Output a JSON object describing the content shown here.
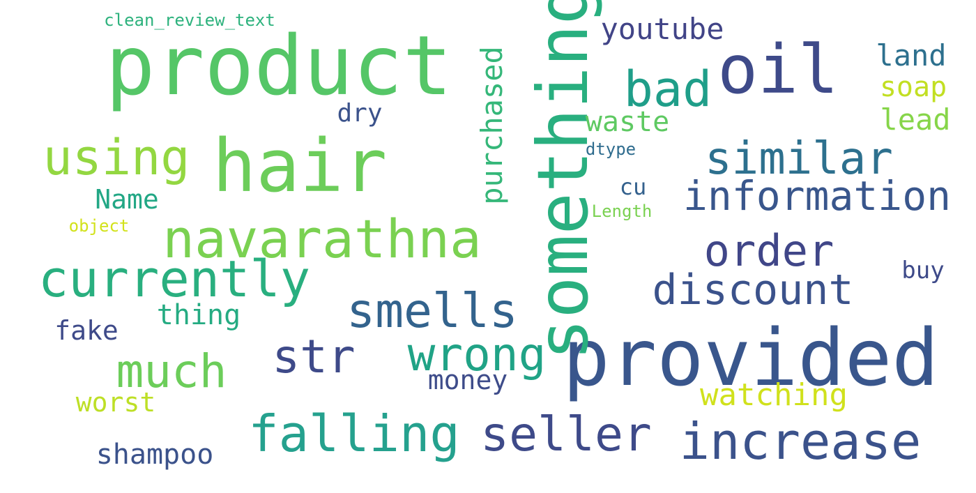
{
  "words": [
    {
      "key": "product",
      "text": "product",
      "color": "#55c667"
    },
    {
      "key": "provided",
      "text": "provided",
      "color": "#39568c"
    },
    {
      "key": "hair",
      "text": "hair",
      "color": "#6ccd5a"
    },
    {
      "key": "something",
      "text": "something",
      "color": "#29af7f"
    },
    {
      "key": "oil",
      "text": "oil",
      "color": "#3e4a89"
    },
    {
      "key": "navarathna",
      "text": "navarathna",
      "color": "#7ad151"
    },
    {
      "key": "falling",
      "text": "falling",
      "color": "#25a18e"
    },
    {
      "key": "increase",
      "text": "increase",
      "color": "#3b528b"
    },
    {
      "key": "currently",
      "text": "currently",
      "color": "#29af7f"
    },
    {
      "key": "using",
      "text": "using",
      "color": "#93d741"
    },
    {
      "key": "bad",
      "text": "bad",
      "color": "#1f9e89"
    },
    {
      "key": "smells",
      "text": "smells",
      "color": "#33638d"
    },
    {
      "key": "seller",
      "text": "seller",
      "color": "#3e4a89"
    },
    {
      "key": "wrong",
      "text": "wrong",
      "color": "#20a386"
    },
    {
      "key": "much",
      "text": "much",
      "color": "#6ccd5a"
    },
    {
      "key": "similar",
      "text": "similar",
      "color": "#2d708e"
    },
    {
      "key": "information",
      "text": "information",
      "color": "#39568c"
    },
    {
      "key": "order",
      "text": "order",
      "color": "#404688"
    },
    {
      "key": "discount",
      "text": "discount",
      "color": "#3b528b"
    },
    {
      "key": "str",
      "text": "str",
      "color": "#3e4a89"
    },
    {
      "key": "purchased",
      "text": "purchased",
      "color": "#35b779"
    },
    {
      "key": "youtube",
      "text": "youtube",
      "color": "#414487"
    },
    {
      "key": "watching",
      "text": "watching",
      "color": "#d0e11c"
    },
    {
      "key": "waste",
      "text": "waste",
      "color": "#5ec962"
    },
    {
      "key": "shampoo",
      "text": "shampoo",
      "color": "#3b528b"
    },
    {
      "key": "land",
      "text": "land",
      "color": "#2d708e"
    },
    {
      "key": "lead",
      "text": "lead",
      "color": "#86d549"
    },
    {
      "key": "soap",
      "text": "soap",
      "color": "#c2df23"
    },
    {
      "key": "thing",
      "text": "thing",
      "color": "#25ab82"
    },
    {
      "key": "money",
      "text": "money",
      "color": "#3e4c8a"
    },
    {
      "key": "Name",
      "text": "Name",
      "color": "#22a785"
    },
    {
      "key": "worst",
      "text": "worst",
      "color": "#bddf26"
    },
    {
      "key": "fake",
      "text": "fake",
      "color": "#3e4a89"
    },
    {
      "key": "dry",
      "text": "dry",
      "color": "#3b528b"
    },
    {
      "key": "buy",
      "text": "buy",
      "color": "#3e4a89"
    },
    {
      "key": "cu",
      "text": "cu",
      "color": "#34618d"
    },
    {
      "key": "clean_review_text",
      "text": "clean_review_text",
      "color": "#2db27d"
    },
    {
      "key": "dtype",
      "text": "dtype",
      "color": "#2f6c8e"
    },
    {
      "key": "Length",
      "text": "Length",
      "color": "#7ad151"
    },
    {
      "key": "object",
      "text": "object",
      "color": "#d2e21b"
    }
  ]
}
